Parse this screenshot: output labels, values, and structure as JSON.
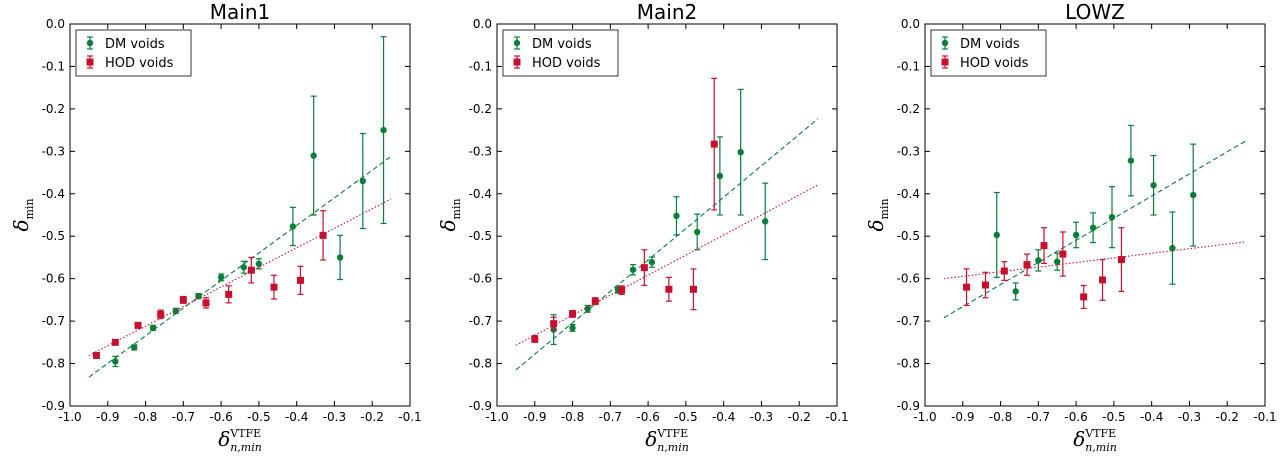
{
  "chart_data": [
    {
      "type": "scatter",
      "title": "Main1",
      "xlabel": "δ_{n,min}^{VTFE}",
      "ylabel": "δ_min",
      "xlim": [
        -1.0,
        -0.1
      ],
      "ylim": [
        -0.9,
        0.0
      ],
      "xticks": [
        "-1.0",
        "-0.9",
        "-0.8",
        "-0.7",
        "-0.6",
        "-0.5",
        "-0.4",
        "-0.3",
        "-0.2",
        "-0.1"
      ],
      "yticks": [
        "0.0",
        "-0.1",
        "-0.2",
        "-0.3",
        "-0.4",
        "-0.5",
        "-0.6",
        "-0.7",
        "-0.8",
        "-0.9"
      ],
      "legend_position": "top-left",
      "series": [
        {
          "name": "DM voids",
          "color": "#0a7d3a",
          "marker": "circle",
          "points": [
            {
              "x": -0.88,
              "y": -0.795,
              "err": 0.012
            },
            {
              "x": -0.83,
              "y": -0.762,
              "err": 0.006
            },
            {
              "x": -0.78,
              "y": -0.716,
              "err": 0.006
            },
            {
              "x": -0.72,
              "y": -0.676,
              "err": 0.006
            },
            {
              "x": -0.66,
              "y": -0.641,
              "err": 0.006
            },
            {
              "x": -0.6,
              "y": -0.597,
              "err": 0.008
            },
            {
              "x": -0.54,
              "y": -0.573,
              "err": 0.014
            },
            {
              "x": -0.5,
              "y": -0.565,
              "err": 0.012
            },
            {
              "x": -0.41,
              "y": -0.477,
              "err": 0.045
            },
            {
              "x": -0.355,
              "y": -0.31,
              "err": 0.14
            },
            {
              "x": -0.285,
              "y": -0.55,
              "err": 0.052
            },
            {
              "x": -0.225,
              "y": -0.37,
              "err": 0.112
            },
            {
              "x": -0.17,
              "y": -0.25,
              "err": 0.22
            }
          ],
          "fit": {
            "style": "dashed",
            "x": [
              -0.95,
              -0.15
            ],
            "y": [
              -0.832,
              -0.312
            ]
          }
        },
        {
          "name": "HOD voids",
          "color": "#c8102e",
          "marker": "square",
          "points": [
            {
              "x": -0.93,
              "y": -0.781,
              "err": 0.005
            },
            {
              "x": -0.88,
              "y": -0.75,
              "err": 0.005
            },
            {
              "x": -0.82,
              "y": -0.71,
              "err": 0.005
            },
            {
              "x": -0.76,
              "y": -0.684,
              "err": 0.01
            },
            {
              "x": -0.7,
              "y": -0.65,
              "err": 0.008
            },
            {
              "x": -0.64,
              "y": -0.657,
              "err": 0.012
            },
            {
              "x": -0.58,
              "y": -0.637,
              "err": 0.02
            },
            {
              "x": -0.52,
              "y": -0.58,
              "err": 0.03
            },
            {
              "x": -0.46,
              "y": -0.62,
              "err": 0.028
            },
            {
              "x": -0.39,
              "y": -0.604,
              "err": 0.033
            },
            {
              "x": -0.33,
              "y": -0.498,
              "err": 0.058
            }
          ],
          "fit": {
            "style": "dotted",
            "x": [
              -0.95,
              -0.15
            ],
            "y": [
              -0.781,
              -0.412
            ]
          }
        }
      ]
    },
    {
      "type": "scatter",
      "title": "Main2",
      "xlabel": "δ_{n,min}^{VTFE}",
      "ylabel": "δ_min",
      "xlim": [
        -1.0,
        -0.1
      ],
      "ylim": [
        -0.9,
        0.0
      ],
      "xticks": [
        "-1.0",
        "-0.9",
        "-0.8",
        "-0.7",
        "-0.6",
        "-0.5",
        "-0.4",
        "-0.3",
        "-0.2",
        "-0.1"
      ],
      "yticks": [
        "0.0",
        "-0.1",
        "-0.2",
        "-0.3",
        "-0.4",
        "-0.5",
        "-0.6",
        "-0.7",
        "-0.8",
        "-0.9"
      ],
      "legend_position": "top-left",
      "series": [
        {
          "name": "DM voids",
          "color": "#0a7d3a",
          "marker": "circle",
          "points": [
            {
              "x": -0.85,
              "y": -0.72,
              "err": 0.035
            },
            {
              "x": -0.8,
              "y": -0.716,
              "err": 0.008
            },
            {
              "x": -0.76,
              "y": -0.671,
              "err": 0.008
            },
            {
              "x": -0.68,
              "y": -0.626,
              "err": 0.008
            },
            {
              "x": -0.64,
              "y": -0.579,
              "err": 0.012
            },
            {
              "x": -0.59,
              "y": -0.561,
              "err": 0.012
            },
            {
              "x": -0.525,
              "y": -0.452,
              "err": 0.045
            },
            {
              "x": -0.47,
              "y": -0.49,
              "err": 0.042
            },
            {
              "x": -0.41,
              "y": -0.358,
              "err": 0.092
            },
            {
              "x": -0.355,
              "y": -0.302,
              "err": 0.148
            },
            {
              "x": -0.29,
              "y": -0.465,
              "err": 0.09
            }
          ],
          "fit": {
            "style": "dashed",
            "x": [
              -0.95,
              -0.15
            ],
            "y": [
              -0.815,
              -0.223
            ]
          }
        },
        {
          "name": "HOD voids",
          "color": "#c8102e",
          "marker": "square",
          "points": [
            {
              "x": -0.9,
              "y": -0.742,
              "err": 0.008
            },
            {
              "x": -0.85,
              "y": -0.706,
              "err": 0.015
            },
            {
              "x": -0.8,
              "y": -0.683,
              "err": 0.008
            },
            {
              "x": -0.74,
              "y": -0.653,
              "err": 0.008
            },
            {
              "x": -0.67,
              "y": -0.627,
              "err": 0.01
            },
            {
              "x": -0.61,
              "y": -0.574,
              "err": 0.042
            },
            {
              "x": -0.545,
              "y": -0.625,
              "err": 0.028
            },
            {
              "x": -0.48,
              "y": -0.625,
              "err": 0.048
            },
            {
              "x": -0.425,
              "y": -0.283,
              "err": 0.155
            }
          ],
          "fit": {
            "style": "dotted",
            "x": [
              -0.95,
              -0.15
            ],
            "y": [
              -0.757,
              -0.379
            ]
          }
        }
      ]
    },
    {
      "type": "scatter",
      "title": "LOWZ",
      "xlabel": "δ_{n,min}^{VTFE}",
      "ylabel": "δ_min",
      "xlim": [
        -1.0,
        -0.1
      ],
      "ylim": [
        -0.9,
        0.0
      ],
      "xticks": [
        "-1.0",
        "-0.9",
        "-0.8",
        "-0.7",
        "-0.6",
        "-0.5",
        "-0.4",
        "-0.3",
        "-0.2",
        "-0.1"
      ],
      "yticks": [
        "0.0",
        "-0.1",
        "-0.2",
        "-0.3",
        "-0.4",
        "-0.5",
        "-0.6",
        "-0.7",
        "-0.8",
        "-0.9"
      ],
      "legend_position": "top-left",
      "series": [
        {
          "name": "DM voids",
          "color": "#0a7d3a",
          "marker": "circle",
          "points": [
            {
              "x": -0.81,
              "y": -0.497,
              "err": 0.1
            },
            {
              "x": -0.76,
              "y": -0.63,
              "err": 0.02
            },
            {
              "x": -0.7,
              "y": -0.557,
              "err": 0.025
            },
            {
              "x": -0.65,
              "y": -0.56,
              "err": 0.02
            },
            {
              "x": -0.6,
              "y": -0.497,
              "err": 0.03
            },
            {
              "x": -0.555,
              "y": -0.48,
              "err": 0.035
            },
            {
              "x": -0.505,
              "y": -0.455,
              "err": 0.072
            },
            {
              "x": -0.455,
              "y": -0.322,
              "err": 0.083
            },
            {
              "x": -0.395,
              "y": -0.38,
              "err": 0.07
            },
            {
              "x": -0.345,
              "y": -0.528,
              "err": 0.085
            },
            {
              "x": -0.29,
              "y": -0.403,
              "err": 0.12
            }
          ],
          "fit": {
            "style": "dashed",
            "x": [
              -0.95,
              -0.15
            ],
            "y": [
              -0.692,
              -0.275
            ]
          }
        },
        {
          "name": "HOD voids",
          "color": "#c8102e",
          "marker": "square",
          "points": [
            {
              "x": -0.89,
              "y": -0.62,
              "err": 0.043
            },
            {
              "x": -0.84,
              "y": -0.615,
              "err": 0.03
            },
            {
              "x": -0.79,
              "y": -0.582,
              "err": 0.022
            },
            {
              "x": -0.73,
              "y": -0.567,
              "err": 0.025
            },
            {
              "x": -0.685,
              "y": -0.522,
              "err": 0.042
            },
            {
              "x": -0.635,
              "y": -0.542,
              "err": 0.052
            },
            {
              "x": -0.58,
              "y": -0.643,
              "err": 0.027
            },
            {
              "x": -0.53,
              "y": -0.603,
              "err": 0.048
            },
            {
              "x": -0.48,
              "y": -0.555,
              "err": 0.075
            }
          ],
          "fit": {
            "style": "dotted",
            "x": [
              -0.95,
              -0.15
            ],
            "y": [
              -0.6,
              -0.513
            ]
          }
        }
      ]
    }
  ]
}
